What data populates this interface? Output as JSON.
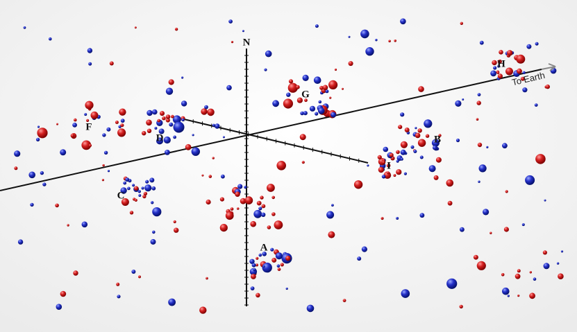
{
  "axis_label": "N",
  "direction_label": "To Earth",
  "groups": [
    {
      "label": "A"
    },
    {
      "label": "B"
    },
    {
      "label": "C"
    },
    {
      "label": "D"
    },
    {
      "label": "F"
    },
    {
      "label": "G"
    },
    {
      "label": "H"
    },
    {
      "label": "I"
    }
  ]
}
